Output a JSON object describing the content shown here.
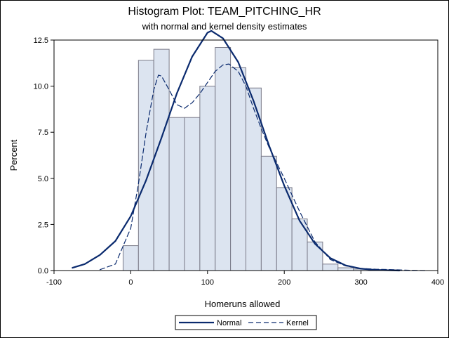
{
  "chart_data": {
    "type": "bar",
    "title": "Histogram Plot: TEAM_PITCHING_HR",
    "subtitle": "with normal and kernel density estimates",
    "xlabel": "Homeruns allowed",
    "ylabel": "Percent",
    "xlim": [
      -100,
      400
    ],
    "ylim": [
      0,
      12.5
    ],
    "xticks": [
      "-100",
      "0",
      "100",
      "200",
      "300",
      "400"
    ],
    "yticks": [
      "0.0",
      "2.5",
      "5.0",
      "7.5",
      "10.0",
      "12.5"
    ],
    "bins": {
      "width": 20,
      "centers": [
        0,
        20,
        40,
        60,
        80,
        100,
        120,
        140,
        160,
        180,
        200,
        220,
        240,
        260,
        280,
        300,
        320,
        340
      ],
      "percent": [
        1.35,
        11.4,
        12.0,
        8.3,
        8.3,
        10.0,
        12.1,
        11.0,
        9.9,
        6.2,
        4.5,
        2.8,
        1.55,
        0.35,
        0.15,
        0.08,
        0.05,
        0.04
      ]
    },
    "series": [
      {
        "name": "Normal",
        "style": "solid",
        "x": [
          -76,
          -60,
          -40,
          -20,
          0,
          20,
          40,
          60,
          80,
          100,
          105,
          120,
          140,
          160,
          180,
          200,
          220,
          240,
          260,
          280,
          300,
          320,
          350
        ],
        "y": [
          0.15,
          0.35,
          0.85,
          1.6,
          2.95,
          4.9,
          7.2,
          9.6,
          11.6,
          12.9,
          13.0,
          12.6,
          11.3,
          9.2,
          6.8,
          4.6,
          2.7,
          1.45,
          0.68,
          0.28,
          0.1,
          0.03,
          0.0
        ]
      },
      {
        "name": "Kernel",
        "style": "dashed",
        "x": [
          -40,
          -20,
          0,
          10,
          20,
          30,
          36,
          40,
          50,
          60,
          70,
          80,
          90,
          100,
          110,
          120,
          128,
          140,
          150,
          160,
          170,
          180,
          200,
          220,
          240,
          260,
          280,
          300,
          320,
          340,
          360,
          385
        ],
        "y": [
          0.05,
          0.35,
          2.3,
          4.7,
          7.5,
          9.8,
          10.6,
          10.55,
          9.8,
          9.0,
          8.8,
          9.1,
          9.6,
          10.2,
          10.8,
          11.15,
          11.2,
          10.8,
          10.0,
          8.8,
          7.7,
          6.7,
          5.0,
          3.2,
          1.55,
          0.6,
          0.25,
          0.12,
          0.07,
          0.05,
          0.02,
          0.0
        ]
      }
    ],
    "colors": {
      "bar_fill": "#dce4f0",
      "bar_stroke": "#7a7a88",
      "line": "#0a2a6e",
      "frame": "#000000"
    },
    "legend": {
      "placement": "bottom-center",
      "items": [
        "Normal",
        "Kernel"
      ]
    },
    "grid": false
  }
}
